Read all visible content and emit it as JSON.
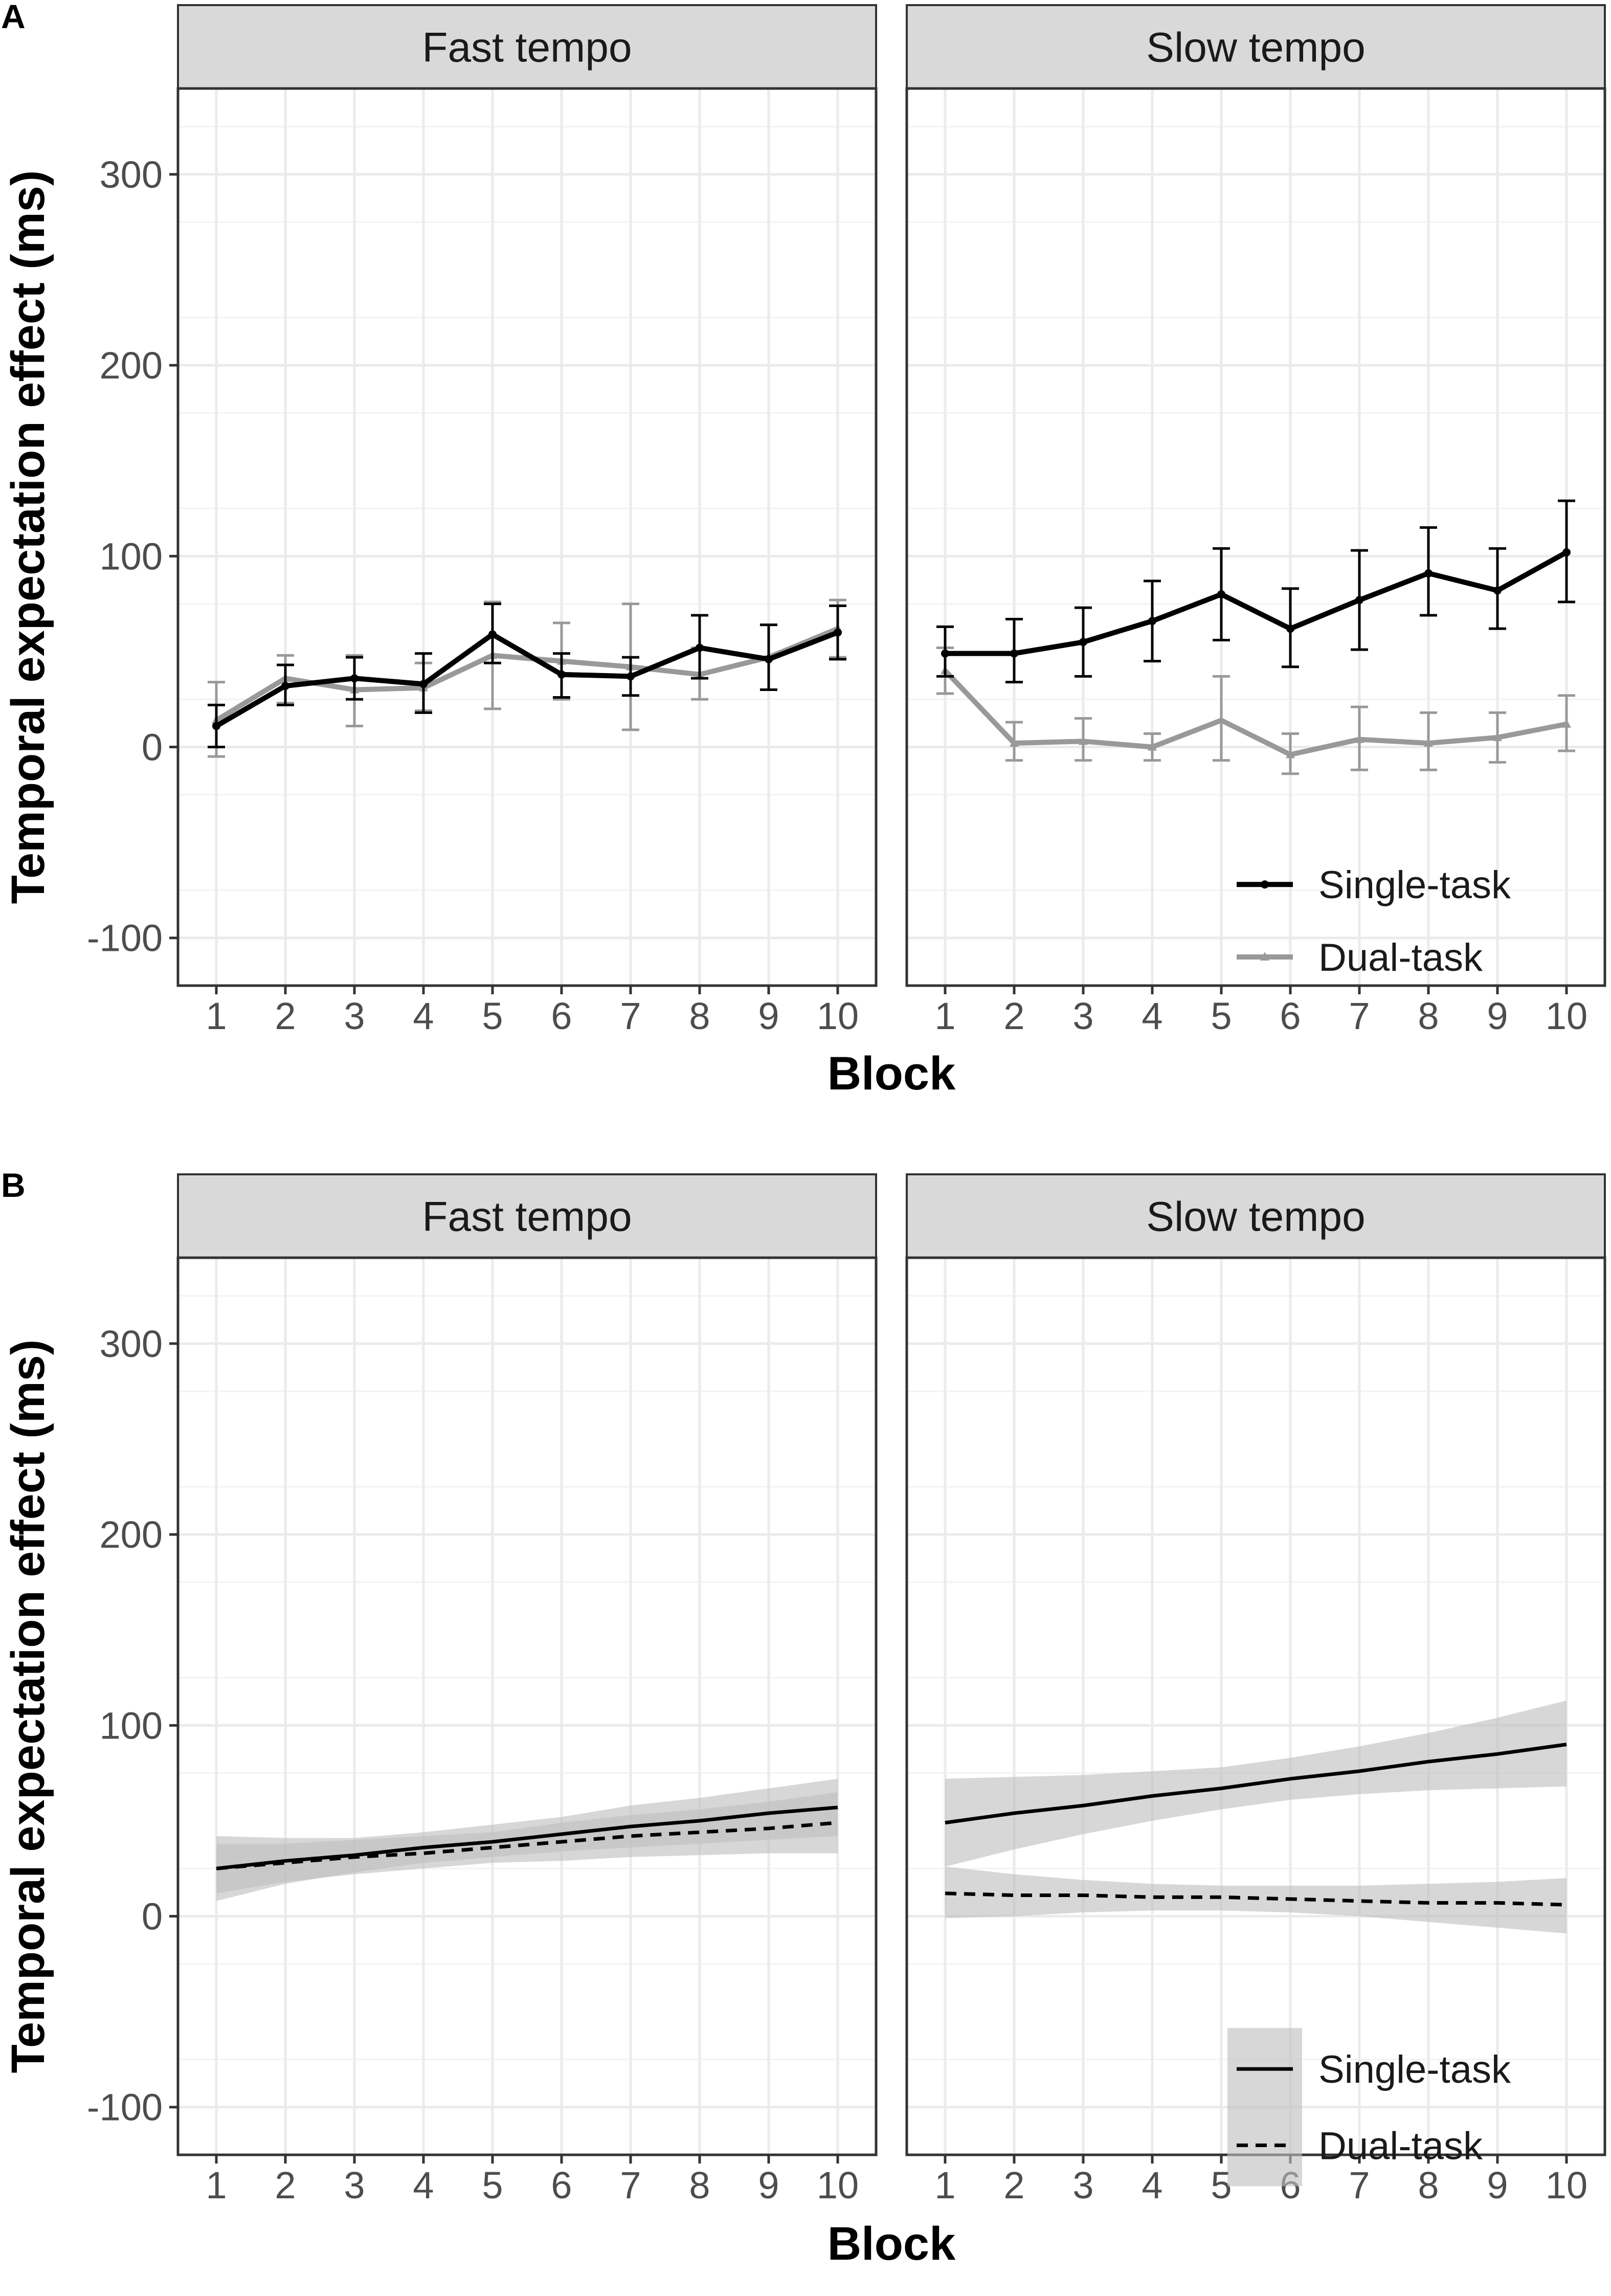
{
  "figure": {
    "panels": [
      {
        "letter": "A",
        "kind": "observed"
      },
      {
        "letter": "B",
        "kind": "fitted"
      }
    ],
    "facets": [
      "Fast tempo",
      "Slow tempo"
    ],
    "xlabel": "Block",
    "ylabel": "Temporal expectation effect (ms)",
    "legend": [
      "Single-task",
      "Dual-task"
    ]
  },
  "colors": {
    "single_observed": "#000000",
    "dual_observed": "#999999",
    "fitted_line": "#000000",
    "ribbon": "#bfbfbf",
    "strip_fill": "#d9d9d9",
    "grid": "#ebebeb",
    "panel_border": "#333333"
  },
  "chart_data": [
    {
      "type": "line",
      "panel": "A",
      "x": [
        1,
        2,
        3,
        4,
        5,
        6,
        7,
        8,
        9,
        10
      ],
      "xticks": [
        "1",
        "2",
        "3",
        "4",
        "5",
        "6",
        "7",
        "8",
        "9",
        "10"
      ],
      "ylim": [
        -125,
        345
      ],
      "yticks": [
        -100,
        0,
        100,
        200,
        300
      ],
      "xlabel": "Block",
      "ylabel": "Temporal expectation effect (ms)",
      "grid": true,
      "legend_position": "inside-bottom-right",
      "facets": [
        {
          "title": "Fast tempo",
          "series": [
            {
              "name": "Single-task",
              "values": [
                11,
                32,
                36,
                33,
                59,
                38,
                37,
                52,
                46,
                60
              ],
              "lower": [
                0,
                22,
                25,
                18,
                44,
                26,
                27,
                36,
                30,
                46
              ],
              "upper": [
                22,
                43,
                47,
                49,
                75,
                49,
                47,
                69,
                64,
                74
              ]
            },
            {
              "name": "Dual-task",
              "values": [
                14,
                36,
                30,
                31,
                48,
                45,
                42,
                38,
                47,
                62
              ],
              "lower": [
                -5,
                23,
                11,
                19,
                20,
                25,
                9,
                25,
                30,
                47
              ],
              "upper": [
                34,
                48,
                48,
                44,
                76,
                65,
                75,
                52,
                64,
                77
              ]
            }
          ]
        },
        {
          "title": "Slow tempo",
          "series": [
            {
              "name": "Single-task",
              "values": [
                49,
                49,
                55,
                66,
                80,
                62,
                77,
                91,
                82,
                102
              ],
              "lower": [
                37,
                34,
                37,
                45,
                56,
                42,
                51,
                69,
                62,
                76
              ],
              "upper": [
                63,
                67,
                73,
                87,
                104,
                83,
                103,
                115,
                104,
                129
              ]
            },
            {
              "name": "Dual-task",
              "values": [
                40,
                2,
                3,
                0,
                14,
                -4,
                4,
                2,
                5,
                12
              ],
              "lower": [
                28,
                -7,
                -7,
                -7,
                -7,
                -14,
                -12,
                -12,
                -8,
                -2
              ],
              "upper": [
                52,
                13,
                15,
                7,
                37,
                7,
                21,
                18,
                18,
                27
              ]
            }
          ]
        }
      ]
    },
    {
      "type": "line",
      "panel": "B",
      "x": [
        1,
        2,
        3,
        4,
        5,
        6,
        7,
        8,
        9,
        10
      ],
      "xticks": [
        "1",
        "2",
        "3",
        "4",
        "5",
        "6",
        "7",
        "8",
        "9",
        "10"
      ],
      "ylim": [
        -125,
        345
      ],
      "yticks": [
        -100,
        0,
        100,
        200,
        300
      ],
      "xlabel": "Block",
      "ylabel": "Temporal expectation effect (ms)",
      "grid": true,
      "legend_position": "inside-bottom-right",
      "facets": [
        {
          "title": "Fast tempo",
          "series": [
            {
              "name": "Single-task",
              "style": "solid",
              "values": [
                25,
                29,
                32,
                36,
                39,
                43,
                47,
                50,
                54,
                57
              ],
              "ribbon_lower": [
                8,
                17,
                23,
                28,
                31,
                34,
                36,
                38,
                40,
                42
              ],
              "ribbon_upper": [
                42,
                41,
                41,
                44,
                48,
                52,
                58,
                62,
                67,
                72
              ]
            },
            {
              "name": "Dual-task",
              "style": "dashed",
              "values": [
                25,
                28,
                31,
                33,
                36,
                39,
                42,
                44,
                46,
                49
              ],
              "ribbon_lower": [
                12,
                18,
                22,
                25,
                28,
                29,
                31,
                32,
                33,
                33
              ],
              "ribbon_upper": [
                38,
                38,
                40,
                42,
                44,
                49,
                53,
                56,
                60,
                65
              ]
            }
          ]
        },
        {
          "title": "Slow tempo",
          "series": [
            {
              "name": "Single-task",
              "style": "solid",
              "values": [
                49,
                54,
                58,
                63,
                67,
                72,
                76,
                81,
                85,
                90
              ],
              "ribbon_lower": [
                26,
                35,
                43,
                50,
                56,
                61,
                64,
                66,
                67,
                68
              ],
              "ribbon_upper": [
                72,
                73,
                74,
                76,
                78,
                83,
                89,
                96,
                104,
                113
              ]
            },
            {
              "name": "Dual-task",
              "style": "dashed",
              "values": [
                12,
                11,
                11,
                10,
                10,
                9,
                8,
                7,
                7,
                6
              ],
              "ribbon_lower": [
                -1,
                0,
                2,
                3,
                3,
                2,
                0,
                -3,
                -6,
                -9
              ],
              "ribbon_upper": [
                26,
                22,
                19,
                17,
                16,
                16,
                16,
                17,
                18,
                20
              ]
            }
          ]
        }
      ]
    }
  ]
}
